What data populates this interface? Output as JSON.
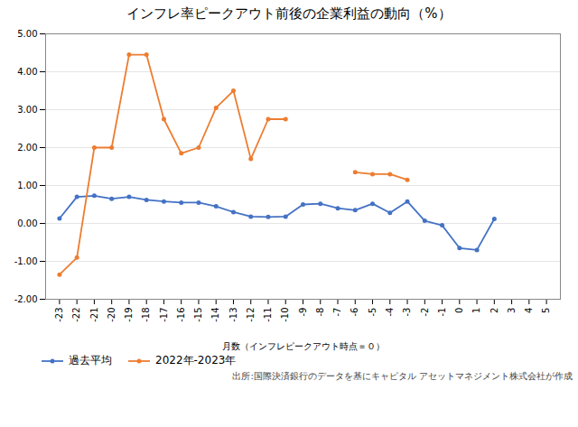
{
  "chart_data": {
    "type": "line",
    "title": "インフレ率ピークアウト前後の企業利益の動向（%）",
    "xlabel": "月数（インフレピークアウト時点＝０）",
    "annotations": [
      "出所:国際決済銀行のデータを基にキャピタル アセットマネジメント株式会社が作成"
    ],
    "x": [
      -23,
      -22,
      -21,
      -20,
      -19,
      -18,
      -17,
      -16,
      -15,
      -14,
      -13,
      -12,
      -11,
      -10,
      -9,
      -8,
      -7,
      -6,
      -5,
      -4,
      -3,
      -2,
      -1,
      0,
      1,
      2,
      3,
      4,
      5
    ],
    "series": [
      {
        "name": "過去平均",
        "color": "#4472C4",
        "values": [
          0.13,
          0.7,
          0.73,
          0.65,
          0.7,
          0.62,
          0.58,
          0.55,
          0.55,
          0.45,
          0.3,
          0.18,
          0.17,
          0.18,
          0.5,
          0.52,
          0.4,
          0.35,
          0.52,
          0.28,
          0.58,
          0.07,
          -0.05,
          -0.65,
          -0.7,
          0.12,
          null,
          null,
          null
        ]
      },
      {
        "name": "2022年-2023年",
        "color": "#ED7D31",
        "values": [
          -1.35,
          -0.9,
          2.0,
          2.0,
          4.45,
          4.45,
          2.75,
          1.85,
          2.0,
          3.05,
          3.5,
          1.7,
          2.75,
          2.75,
          null,
          null,
          null,
          1.35,
          1.3,
          1.3,
          1.15,
          null,
          null,
          null,
          null,
          null,
          null,
          null,
          null
        ]
      }
    ],
    "xlim": [
      -23.8,
      5.8
    ],
    "xticks": [
      -23,
      -22,
      -21,
      -20,
      -19,
      -18,
      -17,
      -16,
      -15,
      -14,
      -13,
      -12,
      -11,
      -10,
      -9,
      -8,
      -7,
      -6,
      -5,
      -4,
      -3,
      -2,
      -1,
      0,
      1,
      2,
      3,
      4,
      5
    ],
    "ylim": [
      -2.0,
      5.0
    ],
    "yticks": [
      {
        "value": -2,
        "label": "-2.00"
      },
      {
        "value": -1,
        "label": "-1.00"
      },
      {
        "value": 0,
        "label": "0.00"
      },
      {
        "value": 1,
        "label": "1.00"
      },
      {
        "value": 2,
        "label": "2.00"
      },
      {
        "value": 3,
        "label": "3.00"
      },
      {
        "value": 4,
        "label": "4.00"
      },
      {
        "value": 5,
        "label": "5.00"
      }
    ],
    "grid": true,
    "legend": "lower left",
    "marker": "circle"
  }
}
